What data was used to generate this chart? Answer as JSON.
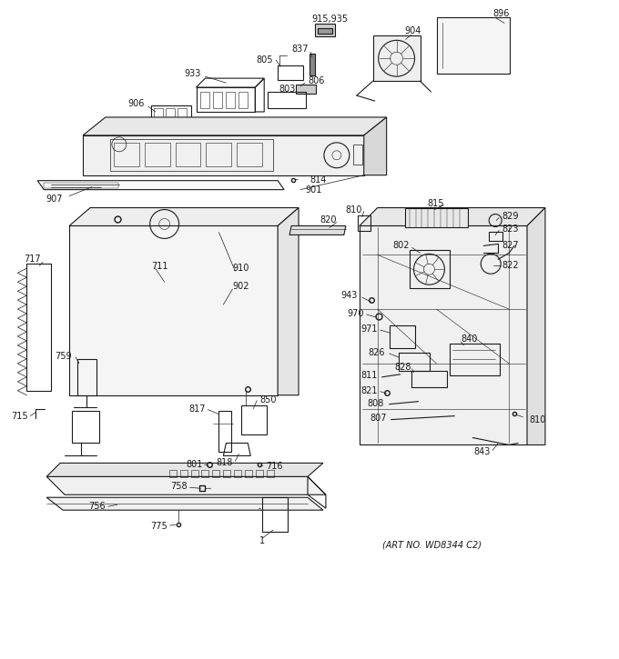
{
  "art_no": "(ART NO. WD8344 C2)",
  "bg_color": "#ffffff",
  "line_color": "#1a1a1a",
  "text_color": "#1a1a1a",
  "fontsize": 7.0,
  "figsize": [
    6.8,
    7.25
  ],
  "dpi": 100
}
